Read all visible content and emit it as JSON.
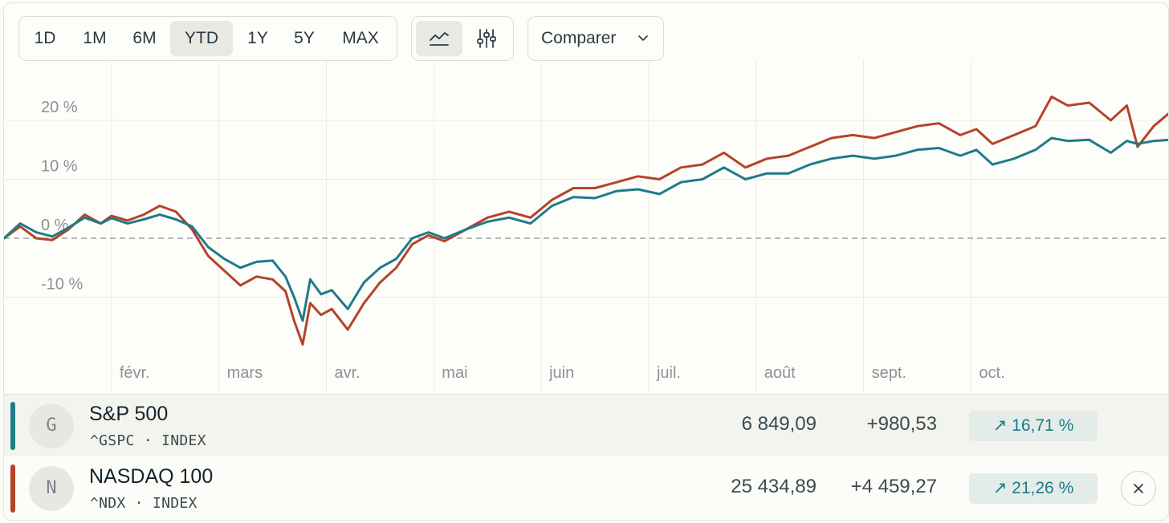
{
  "toolbar": {
    "ranges": [
      "1D",
      "1M",
      "6M",
      "YTD",
      "1Y",
      "5Y",
      "MAX"
    ],
    "active_range": "YTD",
    "view_icons": [
      "line-chart-icon",
      "sliders-icon"
    ],
    "active_view": "line-chart-icon",
    "compare_label": "Comparer",
    "compare_icon": "chevron-down-icon"
  },
  "colors": {
    "sp500": "#1f7b88",
    "nasdaq": "#b5432a",
    "badge_text": "#1a7c86",
    "badge_bg": "#e4ecea"
  },
  "chart_data": {
    "type": "line",
    "ylabels": [
      "20 %",
      "10 %",
      "0 %",
      "-10 %"
    ],
    "yticks": [
      20,
      10,
      0,
      -10
    ],
    "ylim": [
      -21,
      31
    ],
    "xlabels": [
      "févr.",
      "mars",
      "avr.",
      "mai",
      "juin",
      "juil.",
      "août",
      "sept.",
      "oct."
    ],
    "x_month_starts": [
      1,
      2,
      3,
      4,
      5,
      6,
      7,
      8,
      9
    ],
    "xlim": [
      0,
      10.85
    ],
    "baseline": 0,
    "grid": true,
    "series": [
      {
        "name": "S&P 500",
        "color": "#1f7b88",
        "x": [
          0,
          0.15,
          0.3,
          0.45,
          0.6,
          0.75,
          0.9,
          1.0,
          1.15,
          1.3,
          1.45,
          1.6,
          1.75,
          1.9,
          2.05,
          2.2,
          2.35,
          2.5,
          2.62,
          2.7,
          2.78,
          2.85,
          2.95,
          3.05,
          3.2,
          3.35,
          3.5,
          3.65,
          3.8,
          3.95,
          4.1,
          4.3,
          4.5,
          4.7,
          4.9,
          5.1,
          5.3,
          5.5,
          5.7,
          5.9,
          6.1,
          6.3,
          6.5,
          6.7,
          6.9,
          7.1,
          7.3,
          7.5,
          7.7,
          7.9,
          8.1,
          8.3,
          8.5,
          8.7,
          8.9,
          9.05,
          9.2,
          9.4,
          9.6,
          9.75,
          9.9,
          10.1,
          10.3,
          10.45,
          10.55,
          10.7,
          10.85
        ],
        "values": [
          0.0,
          2.5,
          1.0,
          0.3,
          1.8,
          3.5,
          2.5,
          3.4,
          2.5,
          3.2,
          4.0,
          3.2,
          2.0,
          -1.5,
          -3.5,
          -5.0,
          -4.0,
          -3.8,
          -6.5,
          -10.0,
          -14.0,
          -7.0,
          -9.5,
          -8.8,
          -12.0,
          -7.5,
          -5.0,
          -3.5,
          0.0,
          1.0,
          0.0,
          1.5,
          2.8,
          3.5,
          2.5,
          5.5,
          7.0,
          6.8,
          8.0,
          8.3,
          7.5,
          9.5,
          10.0,
          12.0,
          10.0,
          11.0,
          11.0,
          12.5,
          13.5,
          14.0,
          13.5,
          14.0,
          15.0,
          15.3,
          14.0,
          15.0,
          12.5,
          13.5,
          15.0,
          17.0,
          16.5,
          16.7,
          14.5,
          16.5,
          16.0,
          16.5,
          16.7
        ]
      },
      {
        "name": "NASDAQ 100",
        "color": "#b5432a",
        "x": [
          0,
          0.15,
          0.3,
          0.45,
          0.6,
          0.75,
          0.9,
          1.0,
          1.15,
          1.3,
          1.45,
          1.6,
          1.75,
          1.9,
          2.05,
          2.2,
          2.35,
          2.5,
          2.62,
          2.7,
          2.78,
          2.85,
          2.95,
          3.05,
          3.2,
          3.35,
          3.5,
          3.65,
          3.8,
          3.95,
          4.1,
          4.3,
          4.5,
          4.7,
          4.9,
          5.1,
          5.3,
          5.5,
          5.7,
          5.9,
          6.1,
          6.3,
          6.5,
          6.7,
          6.9,
          7.1,
          7.3,
          7.5,
          7.7,
          7.9,
          8.1,
          8.3,
          8.5,
          8.7,
          8.9,
          9.05,
          9.2,
          9.4,
          9.6,
          9.75,
          9.9,
          10.1,
          10.3,
          10.45,
          10.55,
          10.7,
          10.85
        ],
        "values": [
          0.0,
          2.0,
          0.0,
          -0.3,
          1.5,
          4.0,
          2.5,
          3.8,
          3.0,
          4.0,
          5.5,
          4.5,
          1.5,
          -3.0,
          -5.5,
          -8.0,
          -6.5,
          -7.0,
          -9.0,
          -14.0,
          -18.0,
          -11.0,
          -13.0,
          -12.0,
          -15.5,
          -11.0,
          -7.5,
          -5.0,
          -1.0,
          0.5,
          -0.5,
          1.5,
          3.5,
          4.5,
          3.5,
          6.5,
          8.5,
          8.5,
          9.5,
          10.5,
          10.0,
          12.0,
          12.5,
          14.5,
          12.0,
          13.5,
          14.0,
          15.5,
          17.0,
          17.5,
          17.0,
          18.0,
          19.0,
          19.5,
          17.5,
          18.5,
          16.0,
          17.5,
          19.0,
          24.0,
          22.5,
          23.0,
          20.0,
          22.5,
          15.5,
          19.0,
          21.3
        ]
      }
    ]
  },
  "legend": {
    "rows": [
      {
        "avatar": "G",
        "name": "S&P 500",
        "ticker": "^GSPC · INDEX",
        "price": "6 849,09",
        "change": "+980,53",
        "pct": "↗ 16,71 %"
      },
      {
        "avatar": "N",
        "name": "NASDAQ 100",
        "ticker": "^NDX · INDEX",
        "price": "25 434,89",
        "change": "+4 459,27",
        "pct": "↗ 21,26 %",
        "close_icon": "close-icon"
      }
    ]
  }
}
